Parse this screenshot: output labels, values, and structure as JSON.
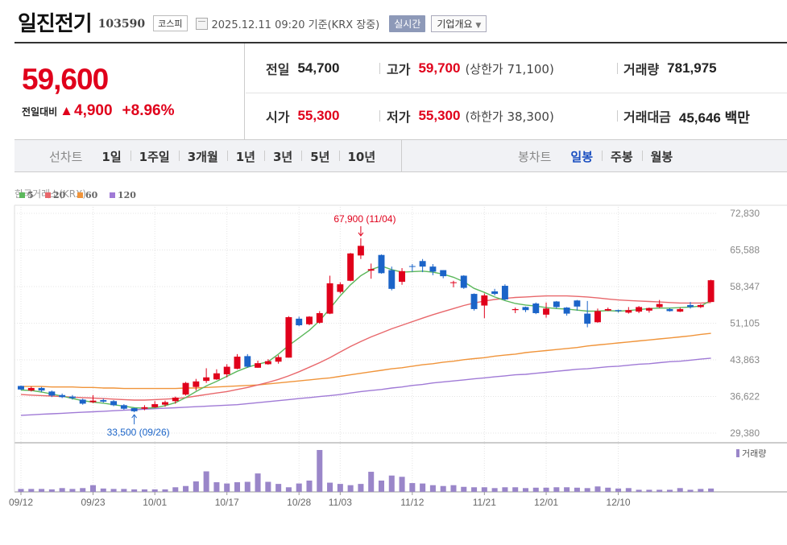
{
  "header": {
    "name": "일진전기",
    "code": "103590",
    "market": "코스피",
    "as_of": "2025.12.11 09:20  기준(KRX 장중)",
    "realtime_btn": "실시간",
    "company_btn": "기업개요"
  },
  "quote": {
    "price": "59,600",
    "change_label": "전일대비",
    "change_arrow": "▲",
    "change": "4,900",
    "change_pct": "+8.96%",
    "prev_close_label": "전일",
    "prev_close": "54,700",
    "high_label": "고가",
    "high": "59,700",
    "upper_limit": "(상한가 71,100)",
    "volume_label": "거래량",
    "volume": "781,975",
    "open_label": "시가",
    "open": "55,300",
    "low_label": "저가",
    "low": "55,300",
    "lower_limit": "(하한가 38,300)",
    "amount_label": "거래대금",
    "amount": "45,646 백만"
  },
  "tabs": {
    "line_title": "선차트",
    "line": [
      "1일",
      "1주일",
      "3개월",
      "1년",
      "3년",
      "5년",
      "10년"
    ],
    "candle_title": "봉차트",
    "candle": [
      "일봉",
      "주봉",
      "월봉"
    ],
    "candle_active": "일봉"
  },
  "chart_data": {
    "type": "candlestick",
    "source": "한국거래소(KRX)",
    "legend": [
      {
        "name": "5",
        "color": "#5cb85c"
      },
      {
        "name": "20",
        "color": "#e8676b"
      },
      {
        "name": "60",
        "color": "#f0943a"
      },
      {
        "name": "120",
        "color": "#a07ad6"
      }
    ],
    "y_ticks": [
      "72,830",
      "65,588",
      "58,347",
      "51,105",
      "43,863",
      "36,622",
      "29,380"
    ],
    "ylim": [
      29380,
      72830
    ],
    "x_ticks": [
      {
        "label": "09/12",
        "i": 0
      },
      {
        "label": "09/23",
        "i": 7
      },
      {
        "label": "10/01",
        "i": 13
      },
      {
        "label": "10/17",
        "i": 20
      },
      {
        "label": "10/28",
        "i": 27
      },
      {
        "label": "11/03",
        "i": 31
      },
      {
        "label": "11/12",
        "i": 38
      },
      {
        "label": "11/21",
        "i": 45
      },
      {
        "label": "12/01",
        "i": 51
      },
      {
        "label": "12/10",
        "i": 58
      }
    ],
    "candles": [
      [
        38700,
        38000,
        38800,
        37900
      ],
      [
        37800,
        38300,
        38600,
        37600
      ],
      [
        38300,
        37800,
        38500,
        37500
      ],
      [
        37600,
        36800,
        37800,
        36500
      ],
      [
        36900,
        36500,
        37200,
        36300
      ],
      [
        36600,
        36300,
        36900,
        36000
      ],
      [
        36000,
        35200,
        36200,
        35000
      ],
      [
        35500,
        35800,
        36900,
        35300
      ],
      [
        35900,
        35600,
        36200,
        35400
      ],
      [
        35700,
        34900,
        35900,
        34700
      ],
      [
        34900,
        34200,
        35100,
        34000
      ],
      [
        34300,
        33700,
        34400,
        33500
      ],
      [
        34200,
        34500,
        34900,
        33900
      ],
      [
        34500,
        35100,
        35700,
        34400
      ],
      [
        35000,
        35500,
        35800,
        34600
      ],
      [
        35700,
        36400,
        36600,
        35200
      ],
      [
        37000,
        39300,
        39500,
        36800
      ],
      [
        38500,
        39600,
        40100,
        37800
      ],
      [
        39700,
        40400,
        42200,
        39300
      ],
      [
        40000,
        41200,
        42000,
        39900
      ],
      [
        41000,
        42500,
        43000,
        40400
      ],
      [
        42100,
        44500,
        45000,
        42000
      ],
      [
        44600,
        42500,
        45000,
        42300
      ],
      [
        42300,
        43200,
        43700,
        42300
      ],
      [
        43000,
        43600,
        44000,
        42900
      ],
      [
        43500,
        44400,
        44800,
        43100
      ],
      [
        44300,
        52300,
        52500,
        44300
      ],
      [
        52000,
        50700,
        52400,
        50500
      ],
      [
        50900,
        52400,
        52500,
        50700
      ],
      [
        51200,
        53100,
        53500,
        51000
      ],
      [
        53000,
        59000,
        60500,
        52900
      ],
      [
        57300,
        58800,
        59200,
        57000
      ],
      [
        59500,
        64900,
        65000,
        59400
      ],
      [
        64500,
        66400,
        67900,
        63800
      ],
      [
        61500,
        61800,
        62900,
        59900
      ],
      [
        64600,
        61000,
        64700,
        60900
      ],
      [
        61600,
        57900,
        62300,
        57600
      ],
      [
        59300,
        61400,
        62000,
        58700
      ],
      [
        62400,
        62300,
        62800,
        61300
      ],
      [
        63400,
        62300,
        63800,
        61200
      ],
      [
        62300,
        61300,
        62800,
        60600
      ],
      [
        61600,
        60400,
        61600,
        60000
      ],
      [
        59200,
        59200,
        59500,
        58200
      ],
      [
        60500,
        58100,
        60600,
        57900
      ],
      [
        56900,
        53900,
        57000,
        53600
      ],
      [
        54600,
        56600,
        57000,
        52100
      ],
      [
        57400,
        56900,
        57900,
        56600
      ],
      [
        58500,
        55800,
        58800,
        55600
      ],
      [
        53700,
        53900,
        54200,
        53100
      ],
      [
        54300,
        53700,
        54400,
        53300
      ],
      [
        55000,
        53100,
        55200,
        52900
      ],
      [
        52800,
        54000,
        55200,
        52200
      ],
      [
        55400,
        54300,
        55500,
        54000
      ],
      [
        54200,
        53000,
        54300,
        52600
      ],
      [
        55600,
        54400,
        55700,
        53600
      ],
      [
        53000,
        51000,
        55500,
        50300
      ],
      [
        51300,
        53500,
        54000,
        51200
      ],
      [
        53600,
        53900,
        54200,
        53500
      ],
      [
        53700,
        53500,
        53800,
        53200
      ],
      [
        53200,
        53700,
        54300,
        53000
      ],
      [
        53400,
        54300,
        54500,
        53100
      ],
      [
        53600,
        54100,
        54200,
        53200
      ],
      [
        54300,
        54900,
        55700,
        54100
      ],
      [
        53900,
        53500,
        54100,
        53400
      ],
      [
        53400,
        53900,
        54200,
        53300
      ],
      [
        54700,
        54300,
        55300,
        54000
      ],
      [
        54300,
        54700,
        54900,
        54100
      ],
      [
        55300,
        59600,
        59700,
        55300
      ]
    ],
    "ma5": [
      37900,
      37800,
      37500,
      37100,
      36700,
      36200,
      35800,
      35500,
      35300,
      35000,
      34700,
      34400,
      34300,
      34400,
      34800,
      35400,
      36400,
      37600,
      38700,
      39600,
      40600,
      41600,
      42400,
      43000,
      43500,
      45000,
      46700,
      48200,
      49700,
      51600,
      54000,
      56500,
      58700,
      60500,
      61700,
      62400,
      61700,
      61200,
      61300,
      61400,
      61200,
      60800,
      60200,
      59300,
      58000,
      57200,
      56300,
      55600,
      55000,
      54700,
      54500,
      54200,
      54000,
      53900,
      53700,
      53500,
      53500,
      53600,
      53500,
      53600,
      53800,
      54000,
      54100,
      54100,
      54200,
      54300,
      54500,
      55600
    ],
    "ma20": [
      37000,
      36900,
      36800,
      36700,
      36600,
      36500,
      36400,
      36300,
      36200,
      36100,
      36000,
      35900,
      35900,
      36000,
      36100,
      36200,
      36400,
      36700,
      37000,
      37300,
      37600,
      38000,
      38400,
      38900,
      39400,
      40000,
      40700,
      41500,
      42400,
      43300,
      44300,
      45400,
      46500,
      47500,
      48400,
      49200,
      50000,
      50700,
      51400,
      52100,
      52800,
      53400,
      54000,
      54600,
      55100,
      55500,
      55800,
      56000,
      56200,
      56300,
      56400,
      56500,
      56500,
      56500,
      56400,
      56300,
      56100,
      55900,
      55700,
      55600,
      55500,
      55400,
      55300,
      55200,
      55100,
      55100,
      55100,
      55200
    ],
    "ma60": [
      38600,
      38600,
      38600,
      38500,
      38500,
      38500,
      38400,
      38400,
      38300,
      38300,
      38200,
      38200,
      38200,
      38200,
      38200,
      38200,
      38300,
      38300,
      38400,
      38500,
      38600,
      38700,
      38800,
      38900,
      39100,
      39300,
      39500,
      39700,
      39900,
      40100,
      40300,
      40600,
      40900,
      41200,
      41500,
      41800,
      42100,
      42300,
      42600,
      42900,
      43100,
      43400,
      43600,
      43900,
      44100,
      44300,
      44600,
      44800,
      45000,
      45300,
      45500,
      45700,
      45900,
      46100,
      46300,
      46600,
      46800,
      47000,
      47200,
      47400,
      47600,
      47800,
      48000,
      48200,
      48400,
      48600,
      48900,
      49100
    ],
    "ma120": [
      32900,
      33000,
      33100,
      33200,
      33300,
      33400,
      33500,
      33600,
      33700,
      33800,
      33900,
      34000,
      34100,
      34200,
      34300,
      34400,
      34500,
      34600,
      34700,
      34800,
      34900,
      35000,
      35200,
      35400,
      35600,
      35800,
      36000,
      36200,
      36400,
      36600,
      36800,
      37000,
      37300,
      37600,
      37800,
      38000,
      38300,
      38500,
      38800,
      39000,
      39300,
      39500,
      39700,
      39900,
      40100,
      40300,
      40500,
      40700,
      40900,
      41000,
      41200,
      41400,
      41600,
      41800,
      42000,
      42100,
      42300,
      42500,
      42600,
      42800,
      43000,
      43100,
      43300,
      43500,
      43600,
      43800,
      44000,
      44200
    ],
    "annotations": [
      {
        "label": "67,900 (11/04)",
        "i": 33,
        "value": 67900,
        "color": "#e0001b",
        "pos": "above"
      },
      {
        "label": "33,500 (09/26)",
        "i": 11,
        "value": 33500,
        "color": "#1b64c8",
        "pos": "below"
      }
    ],
    "volume_label": "거래량",
    "volume": [
      0.07,
      0.07,
      0.07,
      0.06,
      0.09,
      0.07,
      0.09,
      0.16,
      0.08,
      0.07,
      0.07,
      0.06,
      0.06,
      0.06,
      0.06,
      0.11,
      0.14,
      0.25,
      0.49,
      0.23,
      0.2,
      0.23,
      0.24,
      0.44,
      0.24,
      0.19,
      0.11,
      0.2,
      0.27,
      1.0,
      0.22,
      0.19,
      0.16,
      0.19,
      0.48,
      0.27,
      0.39,
      0.36,
      0.21,
      0.2,
      0.16,
      0.14,
      0.16,
      0.12,
      0.11,
      0.11,
      0.09,
      0.11,
      0.11,
      0.09,
      0.1,
      0.1,
      0.11,
      0.11,
      0.1,
      0.09,
      0.13,
      0.1,
      0.08,
      0.09,
      0.05,
      0.05,
      0.05,
      0.05,
      0.09,
      0.05,
      0.07,
      0.08
    ]
  }
}
